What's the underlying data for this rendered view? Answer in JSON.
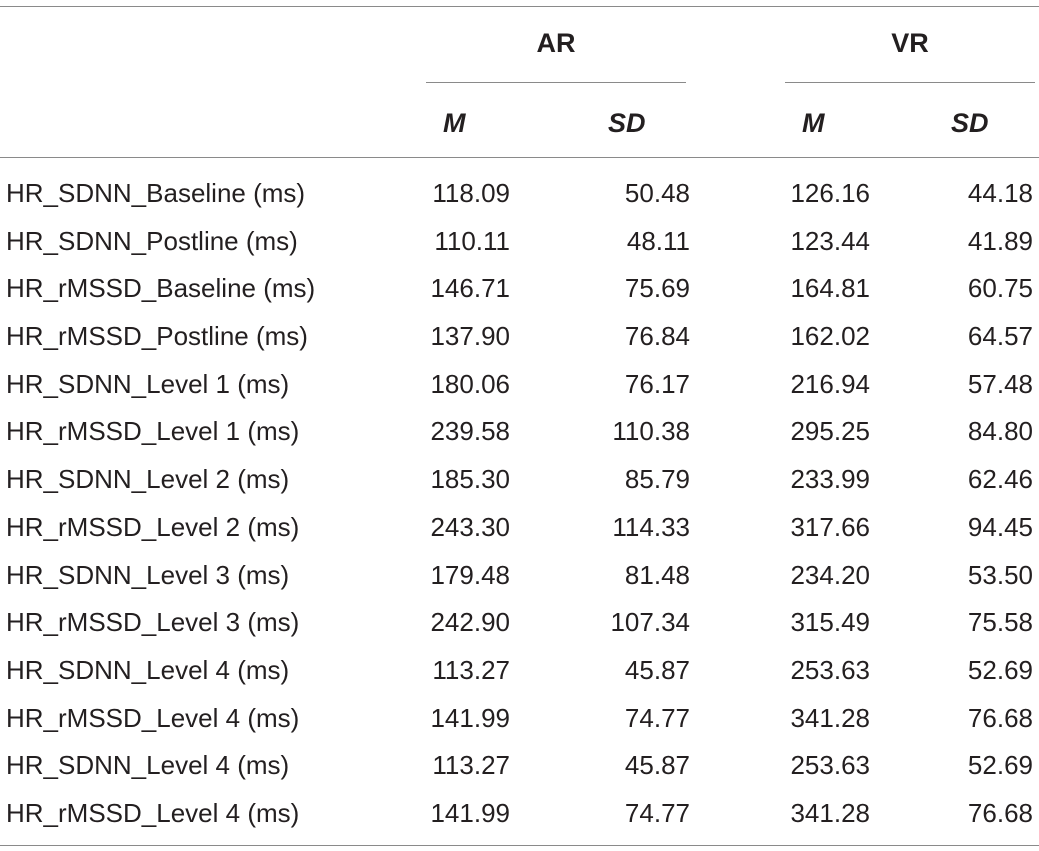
{
  "table": {
    "groups": [
      {
        "label": "AR"
      },
      {
        "label": "VR"
      }
    ],
    "subheaders": [
      "M",
      "SD",
      "M",
      "SD"
    ],
    "rows": [
      {
        "label": "HR_SDNN_Baseline (ms)",
        "ar_m": "118.09",
        "ar_sd": "50.48",
        "vr_m": "126.16",
        "vr_sd": "44.18"
      },
      {
        "label": "HR_SDNN_Postline (ms)",
        "ar_m": "110.11",
        "ar_sd": "48.11",
        "vr_m": "123.44",
        "vr_sd": "41.89"
      },
      {
        "label": "HR_rMSSD_Baseline (ms)",
        "ar_m": "146.71",
        "ar_sd": "75.69",
        "vr_m": "164.81",
        "vr_sd": "60.75"
      },
      {
        "label": "HR_rMSSD_Postline (ms)",
        "ar_m": "137.90",
        "ar_sd": "76.84",
        "vr_m": "162.02",
        "vr_sd": "64.57"
      },
      {
        "label": "HR_SDNN_Level 1 (ms)",
        "ar_m": "180.06",
        "ar_sd": "76.17",
        "vr_m": "216.94",
        "vr_sd": "57.48"
      },
      {
        "label": "HR_rMSSD_Level 1 (ms)",
        "ar_m": "239.58",
        "ar_sd": "110.38",
        "vr_m": "295.25",
        "vr_sd": "84.80"
      },
      {
        "label": "HR_SDNN_Level 2 (ms)",
        "ar_m": "185.30",
        "ar_sd": "85.79",
        "vr_m": "233.99",
        "vr_sd": "62.46"
      },
      {
        "label": "HR_rMSSD_Level 2 (ms)",
        "ar_m": "243.30",
        "ar_sd": "114.33",
        "vr_m": "317.66",
        "vr_sd": "94.45"
      },
      {
        "label": "HR_SDNN_Level 3 (ms)",
        "ar_m": "179.48",
        "ar_sd": "81.48",
        "vr_m": "234.20",
        "vr_sd": "53.50"
      },
      {
        "label": "HR_rMSSD_Level 3 (ms)",
        "ar_m": "242.90",
        "ar_sd": "107.34",
        "vr_m": "315.49",
        "vr_sd": "75.58"
      },
      {
        "label": "HR_SDNN_Level 4 (ms)",
        "ar_m": "113.27",
        "ar_sd": "45.87",
        "vr_m": "253.63",
        "vr_sd": "52.69"
      },
      {
        "label": "HR_rMSSD_Level 4 (ms)",
        "ar_m": "141.99",
        "ar_sd": "74.77",
        "vr_m": "341.28",
        "vr_sd": "76.68"
      },
      {
        "label": "HR_SDNN_Level 4 (ms)",
        "ar_m": "113.27",
        "ar_sd": "45.87",
        "vr_m": "253.63",
        "vr_sd": "52.69"
      },
      {
        "label": "HR_rMSSD_Level 4 (ms)",
        "ar_m": "141.99",
        "ar_sd": "74.77",
        "vr_m": "341.28",
        "vr_sd": "76.68"
      }
    ]
  }
}
